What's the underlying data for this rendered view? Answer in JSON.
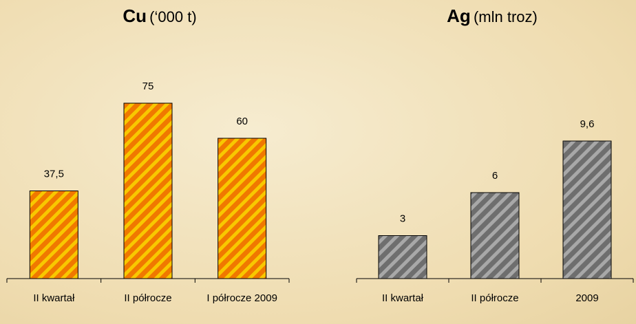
{
  "chart_data": [
    {
      "type": "bar",
      "title": "Cu",
      "unit": "(‘000 t)",
      "categories": [
        "II kwartał",
        "II półrocze",
        "I półrocze 2009"
      ],
      "values": [
        37.5,
        75,
        60
      ],
      "value_labels": [
        "37,5",
        "75",
        "60"
      ],
      "color": "#f07800",
      "stripe_color": "#f8c800"
    },
    {
      "type": "bar",
      "title": "Ag",
      "unit": "(mln troz)",
      "categories": [
        "II kwartał",
        "II półrocze",
        "2009"
      ],
      "values": [
        3,
        6,
        9.6
      ],
      "value_labels": [
        "3",
        "6",
        "9,6"
      ],
      "color": "#6e6e6e",
      "stripe_color": "#a8a8a8"
    }
  ]
}
